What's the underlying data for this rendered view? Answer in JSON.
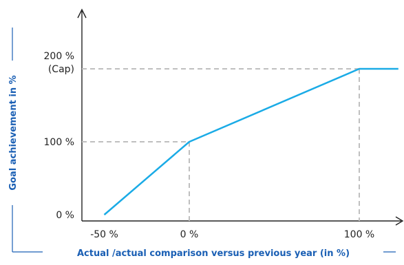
{
  "chart_data": {
    "type": "line",
    "title": "",
    "xlabel": "Actual /actual comparison versus previous year (in %)",
    "ylabel": "Goal achievement in %",
    "xlim": [
      -60,
      120
    ],
    "ylim": [
      0,
      290
    ],
    "x_ticks": [
      {
        "value": -50,
        "label": "-50 %"
      },
      {
        "value": 0,
        "label": "0 %"
      },
      {
        "value": 100,
        "label": "100 %"
      }
    ],
    "y_ticks": [
      {
        "value": 0,
        "label": "0 %",
        "sublabel": ""
      },
      {
        "value": 100,
        "label": "100 %",
        "sublabel": ""
      },
      {
        "value": 200,
        "label": "200 %",
        "sublabel": "(Cap)"
      }
    ],
    "series": [
      {
        "x": [
          -50,
          0,
          100,
          123
        ],
        "y": [
          0,
          100,
          200,
          200
        ]
      }
    ],
    "reference_lines": [
      {
        "x": 0,
        "y": 100
      },
      {
        "x": 100,
        "y": 200
      }
    ],
    "colors": {
      "line": "#1aabe6",
      "axis": "#222222",
      "guide": "#bfbfbf",
      "title": "#1a5fb4"
    },
    "grid": false,
    "legend": "none"
  }
}
